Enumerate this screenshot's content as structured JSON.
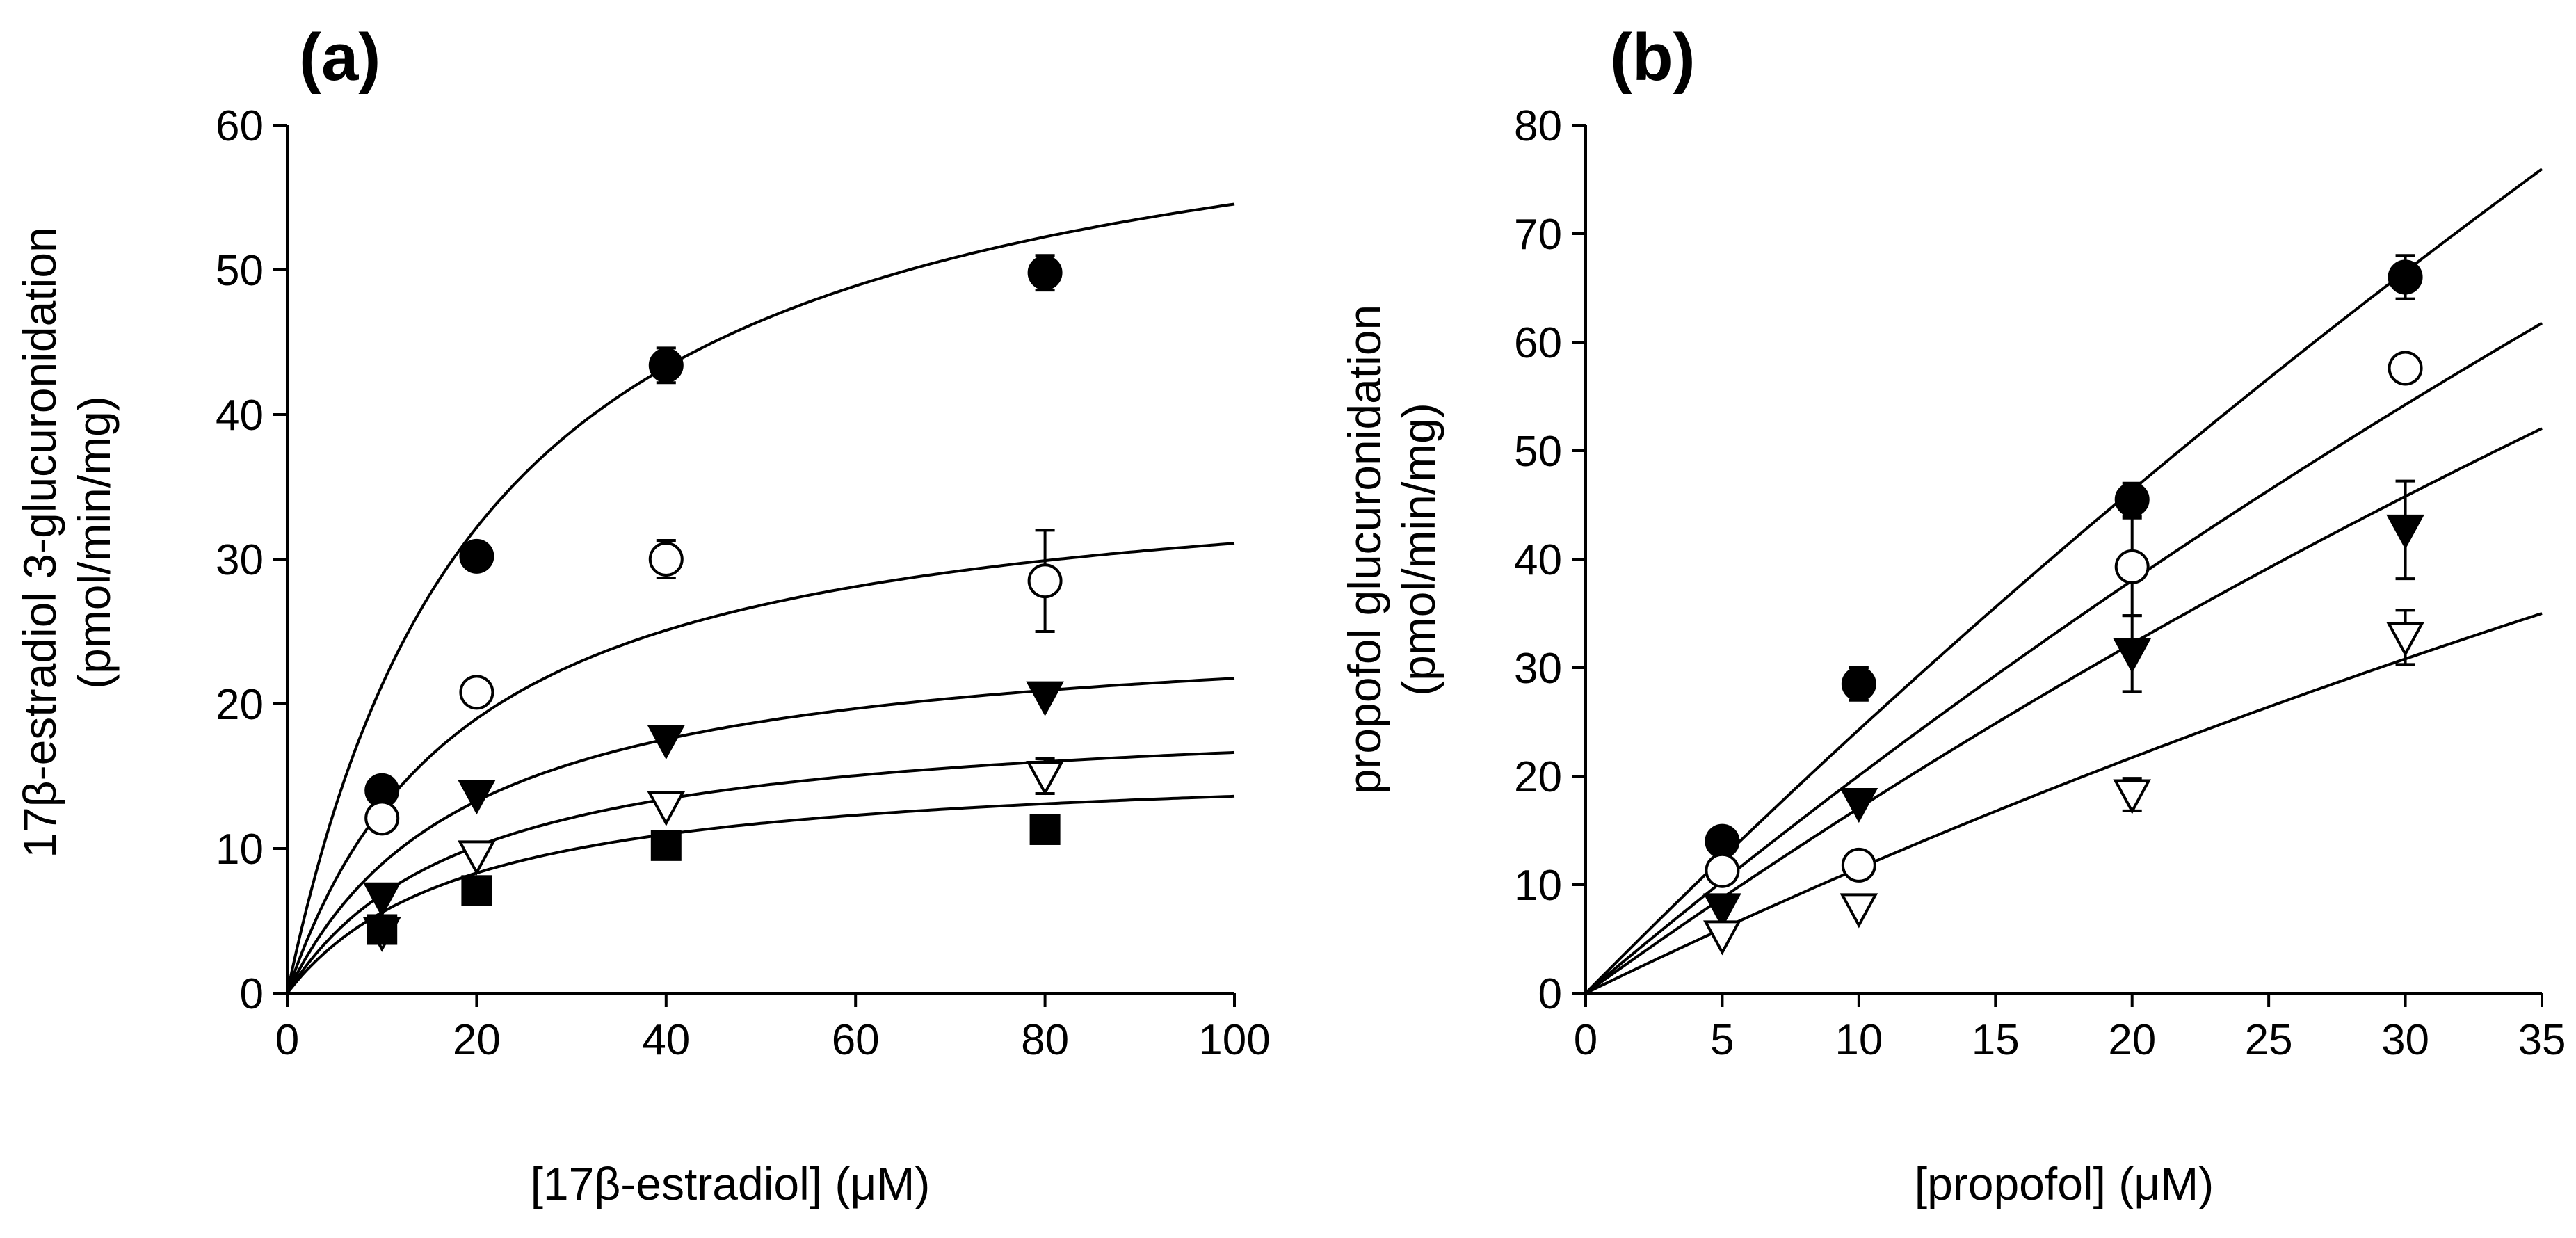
{
  "chart_data": [
    {
      "type": "scatter",
      "panel_label": "(a)",
      "xlabel": "[17β-estradiol] (μM)",
      "ylabel_line1": "17β-estradiol 3-glucuronidation",
      "ylabel_line2": "(pmol/min/mg)",
      "xlim": [
        0,
        100
      ],
      "ylim": [
        0,
        60
      ],
      "xticks": [
        0,
        20,
        40,
        60,
        80,
        100
      ],
      "yticks": [
        0,
        10,
        20,
        30,
        40,
        50,
        60
      ],
      "grid": false,
      "series": [
        {
          "name": "series-1",
          "marker": "filled-circle",
          "x": [
            10,
            20,
            40,
            80
          ],
          "y": [
            14,
            30.2,
            43.4,
            49.8
          ],
          "err": [
            0,
            0,
            1.2,
            1.2
          ],
          "fit": {
            "model": "michaelis-menten",
            "vmax": 66,
            "km": 21
          }
        },
        {
          "name": "series-2",
          "marker": "open-circle",
          "x": [
            10,
            20,
            40,
            80
          ],
          "y": [
            12.1,
            20.8,
            30,
            28.5
          ],
          "err": [
            0,
            0,
            1.3,
            3.5
          ],
          "fit": {
            "model": "michaelis-menten",
            "vmax": 37,
            "km": 19
          }
        },
        {
          "name": "series-3",
          "marker": "filled-triangle-down",
          "x": [
            10,
            20,
            40,
            80
          ],
          "y": [
            6.6,
            13.7,
            17.5,
            20.5
          ],
          "err": [
            0,
            0,
            0,
            0
          ],
          "fit": {
            "model": "michaelis-menten",
            "vmax": 25.9,
            "km": 19
          }
        },
        {
          "name": "series-4",
          "marker": "open-triangle-down",
          "x": [
            10,
            20,
            40,
            80
          ],
          "y": [
            4.2,
            9.5,
            12.9,
            15
          ],
          "err": [
            0,
            0,
            0,
            1.2
          ],
          "fit": {
            "model": "michaelis-menten",
            "vmax": 19.8,
            "km": 19
          }
        },
        {
          "name": "series-5",
          "marker": "filled-square",
          "x": [
            10,
            20,
            40,
            80
          ],
          "y": [
            4.4,
            7.1,
            10.2,
            11.3
          ],
          "err": [
            0,
            0,
            0,
            0
          ],
          "fit": {
            "model": "michaelis-menten",
            "vmax": 16.2,
            "km": 19
          }
        }
      ]
    },
    {
      "type": "scatter",
      "panel_label": "(b)",
      "xlabel": "[propofol] (μM)",
      "ylabel_line1": "propofol glucuronidation",
      "ylabel_line2": "(pmol/min/mg)",
      "xlim": [
        0,
        35
      ],
      "ylim": [
        0,
        80
      ],
      "xticks": [
        0,
        5,
        10,
        15,
        20,
        25,
        30,
        35
      ],
      "yticks": [
        0,
        10,
        20,
        30,
        40,
        50,
        60,
        70,
        80
      ],
      "grid": false,
      "series": [
        {
          "name": "series-1",
          "marker": "filled-circle",
          "x": [
            5,
            10,
            20,
            30
          ],
          "y": [
            14,
            28.5,
            45.5,
            66
          ],
          "err": [
            0,
            1.5,
            1.5,
            2
          ],
          "fit": {
            "model": "michaelis-menten",
            "vmax": 510,
            "km": 200
          }
        },
        {
          "name": "series-2",
          "marker": "open-circle",
          "x": [
            5,
            10,
            20,
            30
          ],
          "y": [
            11.3,
            11.8,
            39.3,
            57.6
          ],
          "err": [
            0,
            0,
            4.5,
            1.2
          ],
          "fit": {
            "model": "michaelis-menten",
            "vmax": 367,
            "km": 173
          }
        },
        {
          "name": "series-3",
          "marker": "filled-triangle-down",
          "x": [
            5,
            10,
            20,
            30
          ],
          "y": [
            7.8,
            17.5,
            31.3,
            42.7
          ],
          "err": [
            0,
            0,
            3.5,
            4.5
          ],
          "fit": {
            "model": "michaelis-menten",
            "vmax": 290,
            "km": 160
          }
        },
        {
          "name": "series-4",
          "marker": "open-triangle-down",
          "x": [
            5,
            10,
            20,
            30
          ],
          "y": [
            5.3,
            7.8,
            18.3,
            32.8
          ],
          "err": [
            0,
            0,
            1.5,
            2.5
          ],
          "fit": {
            "model": "michaelis-menten",
            "vmax": 190,
            "km": 155
          }
        }
      ]
    }
  ]
}
